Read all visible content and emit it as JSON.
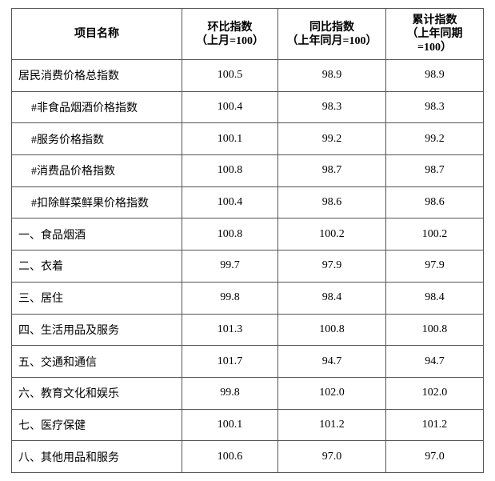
{
  "table": {
    "header": [
      "项目名称",
      "环比指数\n（上月=100）",
      "同比指数\n（上年同月=100）",
      "累计指数\n（上年同期\n=100）"
    ],
    "rows": [
      [
        "居民消费价格总指数",
        "100.5",
        "98.9",
        "98.9"
      ],
      [
        "#非食品烟酒价格指数",
        "100.4",
        "98.3",
        "98.3"
      ],
      [
        "#服务价格指数",
        "100.1",
        "99.2",
        "99.2"
      ],
      [
        "#消费品价格指数",
        "100.8",
        "98.7",
        "98.7"
      ],
      [
        "#扣除鲜菜鲜果价格指数",
        "100.4",
        "98.6",
        "98.6"
      ],
      [
        "一、食品烟酒",
        "100.8",
        "100.2",
        "100.2"
      ],
      [
        "二、衣着",
        "99.7",
        "97.9",
        "97.9"
      ],
      [
        "三、居住",
        "99.8",
        "98.4",
        "98.4"
      ],
      [
        "四、生活用品及服务",
        "101.3",
        "100.8",
        "100.8"
      ],
      [
        "五、交通和通信",
        "101.7",
        "94.7",
        "94.7"
      ],
      [
        "六、教育文化和娱乐",
        "99.8",
        "102.0",
        "102.0"
      ],
      [
        "七、医疗保健",
        "100.1",
        "101.2",
        "101.2"
      ],
      [
        "八、其他用品和服务",
        "100.6",
        "97.0",
        "97.0"
      ]
    ]
  }
}
